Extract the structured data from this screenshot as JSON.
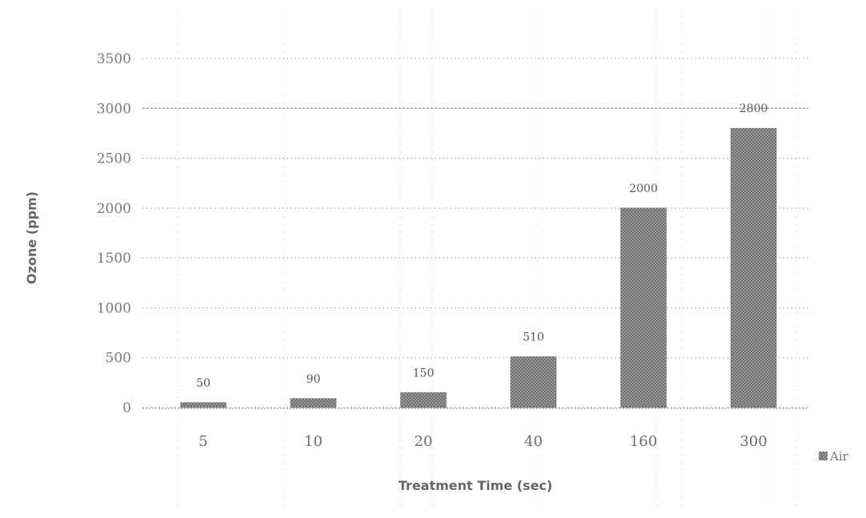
{
  "chart_data": {
    "type": "bar",
    "categories": [
      "5",
      "10",
      "20",
      "40",
      "160",
      "300"
    ],
    "series": [
      {
        "name": "Air",
        "values": [
          50,
          90,
          150,
          510,
          2000,
          2800
        ],
        "color": "#8c8c8c"
      }
    ],
    "data_labels": [
      "50",
      "90",
      "150",
      "510",
      "2000",
      "2800"
    ],
    "y_ticks": [
      "0",
      "500",
      "1000",
      "1500",
      "2000",
      "2500",
      "3000",
      "3500"
    ],
    "ylim": [
      0,
      3500
    ],
    "xlabel": "Treatment Time (sec)",
    "ylabel": "Ozone (ppm)",
    "grid": true,
    "legend_position": "right"
  }
}
